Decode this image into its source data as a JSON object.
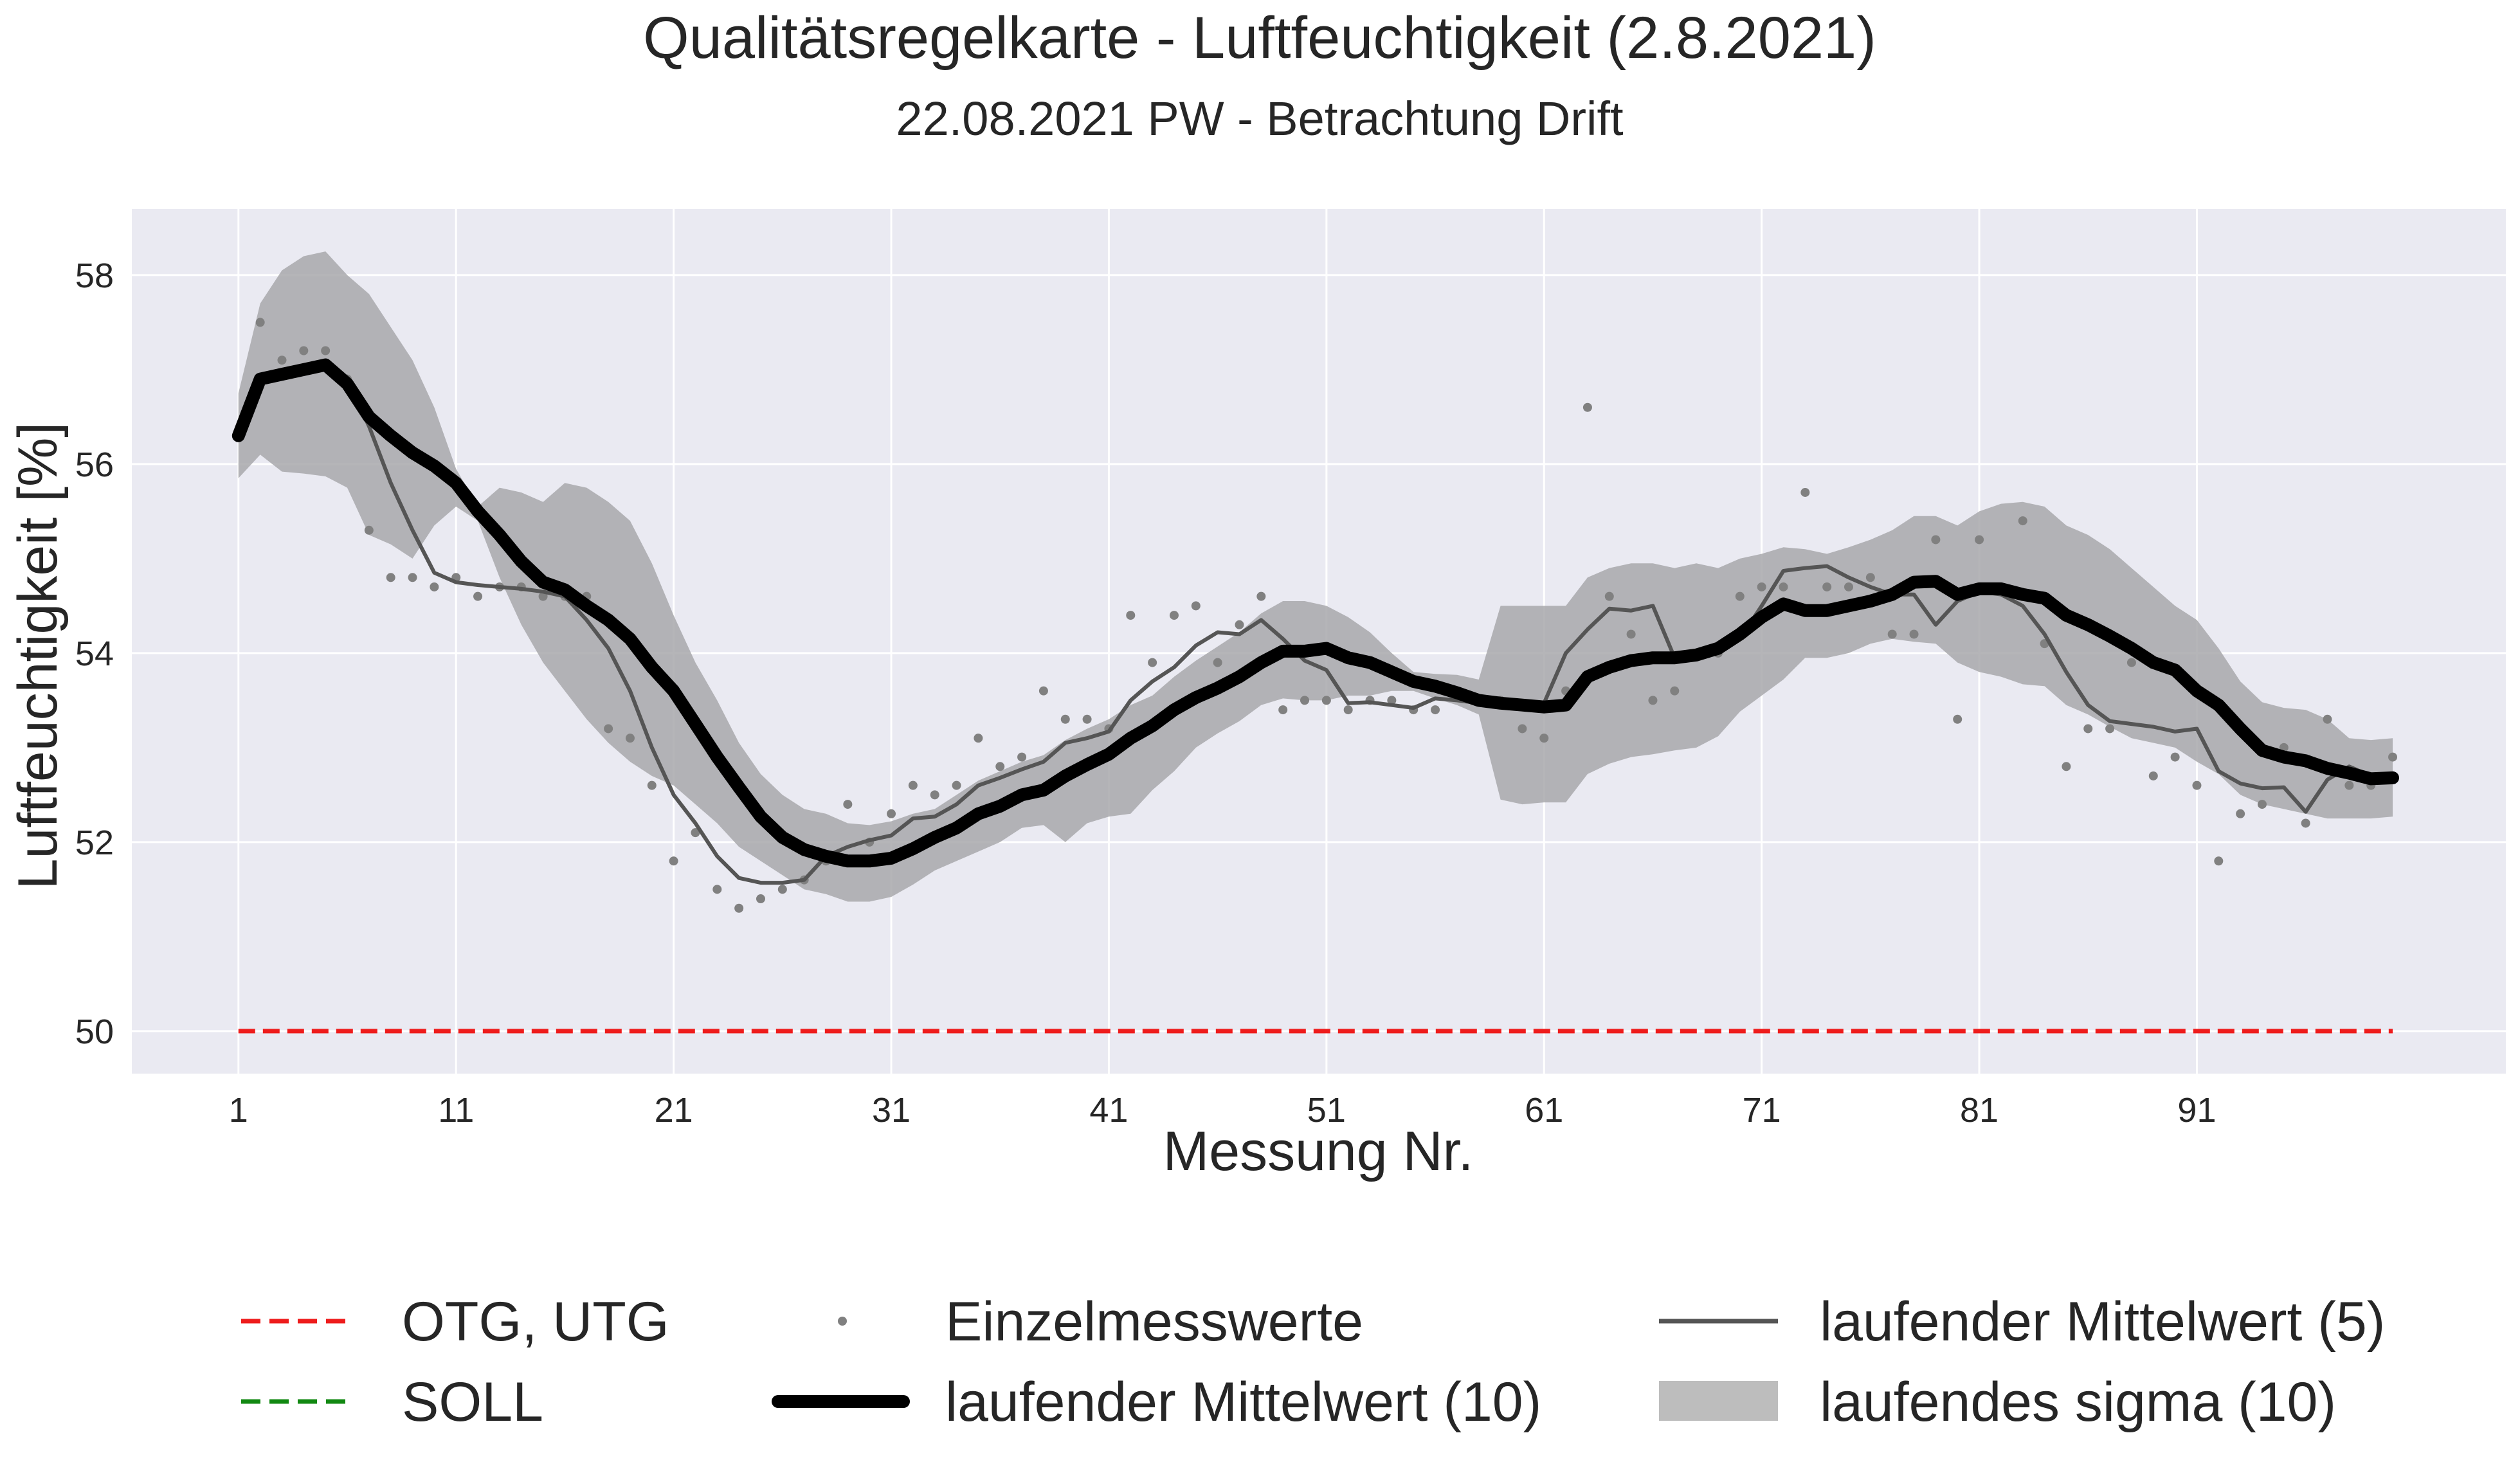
{
  "chart_data": {
    "type": "line",
    "title": "Qualitätsregelkarte - Luftfeuchtigkeit (2.8.2021)",
    "subtitle": "22.08.2021 PW - Betrachtung Drift",
    "xlabel": "Messung Nr.",
    "ylabel": "Luftfeuchtigkeit [%]",
    "xlim": [
      -3.9,
      105.2
    ],
    "ylim": [
      49.55,
      58.7
    ],
    "x_ticks": [
      1,
      11,
      21,
      31,
      41,
      51,
      61,
      71,
      81,
      91
    ],
    "y_ticks": [
      50,
      52,
      54,
      56,
      58
    ],
    "grid": true,
    "legend_position": "bottom",
    "colors": {
      "plot_background": "#eaeaf2",
      "grid": "#ffffff",
      "limit_line": "#ee1c1c",
      "soll_line": "#118811",
      "points": "#808080",
      "running_mean_5": "#555555",
      "running_mean_10": "#000000",
      "sigma_band": "#a8a8ab"
    },
    "limits": {
      "otg": 50,
      "utg": 50
    },
    "series": [
      {
        "name": "Einzelmesswerte",
        "style": "points",
        "x": [
          2,
          3,
          4,
          5,
          6,
          7,
          8,
          9,
          10,
          11,
          12,
          13,
          14,
          15,
          16,
          17,
          18,
          19,
          20,
          21,
          22,
          23,
          24,
          25,
          26,
          27,
          28,
          29,
          30,
          31,
          32,
          33,
          34,
          35,
          36,
          37,
          38,
          39,
          40,
          41,
          42,
          43,
          44,
          45,
          46,
          47,
          48,
          49,
          50,
          51,
          52,
          53,
          54,
          55,
          56,
          57,
          58,
          59,
          60,
          61,
          62,
          63,
          64,
          65,
          66,
          67,
          68,
          69,
          70,
          71,
          72,
          73,
          74,
          75,
          76,
          77,
          78,
          79,
          80,
          81,
          82,
          83,
          84,
          85,
          86,
          87,
          88,
          89,
          90,
          91,
          92,
          93,
          94,
          95,
          96,
          97,
          98,
          99,
          100
        ],
        "y": [
          57.5,
          57.1,
          57.2,
          57.2,
          56.9,
          55.3,
          54.8,
          54.8,
          54.7,
          54.8,
          54.6,
          54.7,
          54.7,
          54.6,
          54.6,
          54.6,
          53.2,
          53.1,
          52.6,
          51.8,
          52.1,
          51.5,
          51.3,
          51.4,
          51.5,
          51.6,
          51.8,
          52.4,
          52.0,
          52.3,
          52.6,
          52.5,
          52.6,
          53.1,
          52.8,
          52.9,
          53.6,
          53.3,
          53.3,
          53.2,
          54.4,
          53.9,
          54.4,
          54.5,
          53.9,
          54.3,
          54.6,
          53.4,
          53.5,
          53.5,
          53.4,
          53.5,
          53.5,
          53.4,
          53.4,
          53.6,
          53.5,
          53.5,
          53.2,
          53.1,
          53.6,
          56.6,
          54.6,
          54.2,
          53.5,
          53.6,
          54.0,
          54.0,
          54.6,
          54.7,
          54.7,
          55.7,
          54.7,
          54.7,
          54.8,
          54.2,
          54.2,
          55.2,
          53.3,
          55.2,
          54.7,
          55.4,
          54.1,
          52.8,
          53.2,
          53.2,
          53.9,
          52.7,
          52.9,
          52.6,
          51.8,
          52.3,
          52.4,
          53.0,
          52.2,
          53.3,
          52.6,
          52.6,
          52.9
        ]
      },
      {
        "name": "laufender Mittelwert (5)",
        "style": "line",
        "x": [
          1,
          2,
          3,
          4,
          5,
          6,
          7,
          8,
          9,
          10,
          11,
          12,
          13,
          14,
          15,
          16,
          17,
          18,
          19,
          20,
          21,
          22,
          23,
          24,
          25,
          26,
          27,
          28,
          29,
          30,
          31,
          32,
          33,
          34,
          35,
          36,
          37,
          38,
          39,
          40,
          41,
          42,
          43,
          44,
          45,
          46,
          47,
          48,
          49,
          50,
          51,
          52,
          53,
          54,
          55,
          56,
          57,
          58,
          59,
          60,
          61,
          62,
          63,
          64,
          65,
          66,
          67,
          68,
          69,
          70,
          71,
          72,
          73,
          74,
          75,
          76,
          77,
          78,
          79,
          80,
          81,
          82,
          83,
          84,
          85,
          86,
          87,
          88,
          89,
          90,
          91,
          92,
          93,
          94,
          95,
          96,
          97,
          98,
          99,
          100
        ],
        "y": [
          56.3,
          56.9,
          56.95,
          57.0,
          57.05,
          56.9,
          56.4,
          55.8,
          55.3,
          54.85,
          54.75,
          54.72,
          54.7,
          54.68,
          54.65,
          54.6,
          54.35,
          54.05,
          53.6,
          53.0,
          52.5,
          52.2,
          51.85,
          51.62,
          51.57,
          51.57,
          51.6,
          51.85,
          51.95,
          52.02,
          52.07,
          52.25,
          52.27,
          52.4,
          52.6,
          52.68,
          52.77,
          52.85,
          53.05,
          53.1,
          53.17,
          53.5,
          53.7,
          53.85,
          54.08,
          54.22,
          54.2,
          54.35,
          54.15,
          53.92,
          53.82,
          53.47,
          53.48,
          53.45,
          53.42,
          53.52,
          53.5,
          53.47,
          53.44,
          53.42,
          53.47,
          54.0,
          54.25,
          54.47,
          54.45,
          54.5,
          53.95,
          53.95,
          54.0,
          54.15,
          54.5,
          54.87,
          54.9,
          54.92,
          54.8,
          54.7,
          54.62,
          54.62,
          54.3,
          54.55,
          54.65,
          54.62,
          54.5,
          54.2,
          53.8,
          53.45,
          53.28,
          53.25,
          53.22,
          53.17,
          53.2,
          52.75,
          52.62,
          52.57,
          52.58,
          52.32,
          52.66,
          52.8,
          52.7,
          52.7
        ]
      },
      {
        "name": "laufender Mittelwert (10)",
        "style": "line",
        "x": [
          1,
          2,
          3,
          4,
          5,
          6,
          7,
          8,
          9,
          10,
          11,
          12,
          13,
          14,
          15,
          16,
          17,
          18,
          19,
          20,
          21,
          22,
          23,
          24,
          25,
          26,
          27,
          28,
          29,
          30,
          31,
          32,
          33,
          34,
          35,
          36,
          37,
          38,
          39,
          40,
          41,
          42,
          43,
          44,
          45,
          46,
          47,
          48,
          49,
          50,
          51,
          52,
          53,
          54,
          55,
          56,
          57,
          58,
          59,
          60,
          61,
          62,
          63,
          64,
          65,
          66,
          67,
          68,
          69,
          70,
          71,
          72,
          73,
          74,
          75,
          76,
          77,
          78,
          79,
          80,
          81,
          82,
          83,
          84,
          85,
          86,
          87,
          88,
          89,
          90,
          91,
          92,
          93,
          94,
          95,
          96,
          97,
          98,
          99,
          100
        ],
        "y": [
          56.3,
          56.9,
          56.95,
          57.0,
          57.05,
          56.85,
          56.5,
          56.3,
          56.12,
          55.98,
          55.8,
          55.5,
          55.25,
          54.97,
          54.75,
          54.67,
          54.5,
          54.35,
          54.15,
          53.85,
          53.6,
          53.25,
          52.9,
          52.58,
          52.27,
          52.05,
          51.92,
          51.85,
          51.8,
          51.8,
          51.83,
          51.93,
          52.05,
          52.15,
          52.3,
          52.38,
          52.5,
          52.55,
          52.7,
          52.82,
          52.93,
          53.1,
          53.23,
          53.4,
          53.53,
          53.63,
          53.75,
          53.9,
          54.02,
          54.02,
          54.05,
          53.95,
          53.9,
          53.8,
          53.7,
          53.65,
          53.58,
          53.5,
          53.47,
          53.45,
          53.43,
          53.45,
          53.75,
          53.85,
          53.92,
          53.95,
          53.95,
          53.98,
          54.05,
          54.2,
          54.38,
          54.52,
          54.45,
          54.45,
          54.5,
          54.55,
          54.62,
          54.75,
          54.76,
          54.62,
          54.68,
          54.68,
          54.62,
          54.58,
          54.4,
          54.3,
          54.18,
          54.05,
          53.9,
          53.82,
          53.6,
          53.45,
          53.2,
          52.97,
          52.9,
          52.86,
          52.78,
          52.73,
          52.67,
          52.68
        ]
      },
      {
        "name": "laufendes sigma (10)",
        "style": "band",
        "x": [
          1,
          2,
          3,
          4,
          5,
          6,
          7,
          8,
          9,
          10,
          11,
          12,
          13,
          14,
          15,
          16,
          17,
          18,
          19,
          20,
          21,
          22,
          23,
          24,
          25,
          26,
          27,
          28,
          29,
          30,
          31,
          32,
          33,
          34,
          35,
          36,
          37,
          38,
          39,
          40,
          41,
          42,
          43,
          44,
          45,
          46,
          47,
          48,
          49,
          50,
          51,
          52,
          53,
          54,
          55,
          56,
          57,
          58,
          59,
          60,
          61,
          62,
          63,
          64,
          65,
          66,
          67,
          68,
          69,
          70,
          71,
          72,
          73,
          74,
          75,
          76,
          77,
          78,
          79,
          80,
          81,
          82,
          83,
          84,
          85,
          86,
          87,
          88,
          89,
          90,
          91,
          92,
          93,
          94,
          95,
          96,
          97,
          98,
          99,
          100
        ],
        "upper": [
          56.75,
          57.7,
          58.05,
          58.2,
          58.25,
          58.0,
          57.8,
          57.45,
          57.1,
          56.6,
          55.95,
          55.55,
          55.75,
          55.7,
          55.6,
          55.8,
          55.75,
          55.6,
          55.4,
          54.95,
          54.4,
          53.9,
          53.5,
          53.05,
          52.72,
          52.5,
          52.35,
          52.3,
          52.2,
          52.18,
          52.22,
          52.3,
          52.35,
          52.5,
          52.65,
          52.75,
          52.85,
          52.92,
          53.08,
          53.2,
          53.3,
          53.45,
          53.55,
          53.75,
          53.92,
          54.07,
          54.22,
          54.42,
          54.55,
          54.55,
          54.5,
          54.38,
          54.22,
          54.0,
          53.8,
          53.78,
          53.77,
          53.72,
          54.5,
          54.5,
          54.5,
          54.5,
          54.8,
          54.9,
          54.95,
          54.95,
          54.9,
          54.95,
          54.9,
          55.0,
          55.05,
          55.12,
          55.1,
          55.05,
          55.12,
          55.2,
          55.3,
          55.45,
          55.45,
          55.35,
          55.5,
          55.58,
          55.6,
          55.55,
          55.35,
          55.25,
          55.1,
          54.9,
          54.7,
          54.5,
          54.35,
          54.05,
          53.7,
          53.48,
          53.42,
          53.4,
          53.3,
          53.1,
          53.08,
          53.1
        ],
        "lower": [
          55.85,
          56.1,
          55.92,
          55.9,
          55.87,
          55.75,
          55.25,
          55.15,
          55.0,
          55.35,
          55.55,
          55.4,
          54.8,
          54.3,
          53.9,
          53.6,
          53.3,
          53.05,
          52.85,
          52.7,
          52.6,
          52.4,
          52.2,
          51.95,
          51.8,
          51.65,
          51.5,
          51.45,
          51.37,
          51.37,
          51.42,
          51.55,
          51.7,
          51.8,
          51.9,
          52.0,
          52.15,
          52.18,
          52.0,
          52.2,
          52.27,
          52.3,
          52.55,
          52.75,
          53.0,
          53.15,
          53.28,
          53.45,
          53.52,
          53.5,
          53.5,
          53.55,
          53.55,
          53.6,
          53.6,
          53.52,
          53.45,
          53.35,
          52.45,
          52.4,
          52.42,
          52.42,
          52.72,
          52.83,
          52.9,
          52.93,
          52.97,
          53.0,
          53.12,
          53.38,
          53.55,
          53.72,
          53.95,
          53.95,
          54.0,
          54.1,
          54.15,
          54.12,
          54.1,
          53.9,
          53.8,
          53.75,
          53.67,
          53.65,
          53.45,
          53.35,
          53.22,
          53.1,
          53.05,
          53.0,
          52.85,
          52.72,
          52.5,
          52.4,
          52.35,
          52.3,
          52.25,
          52.25,
          52.25,
          52.27
        ]
      }
    ],
    "legend": [
      {
        "label": "OTG, UTG",
        "style": "dashed",
        "color": "#ee1c1c"
      },
      {
        "label": "Einzelmesswerte",
        "style": "point",
        "color": "#808080"
      },
      {
        "label": "laufender Mittelwert (5)",
        "style": "line",
        "color": "#555555"
      },
      {
        "label": "SOLL",
        "style": "dashed",
        "color": "#118811"
      },
      {
        "label": "laufender Mittelwert (10)",
        "style": "thick-line",
        "color": "#000000"
      },
      {
        "label": "laufendes sigma (10)",
        "style": "patch",
        "color": "#bdbdbd"
      }
    ]
  }
}
